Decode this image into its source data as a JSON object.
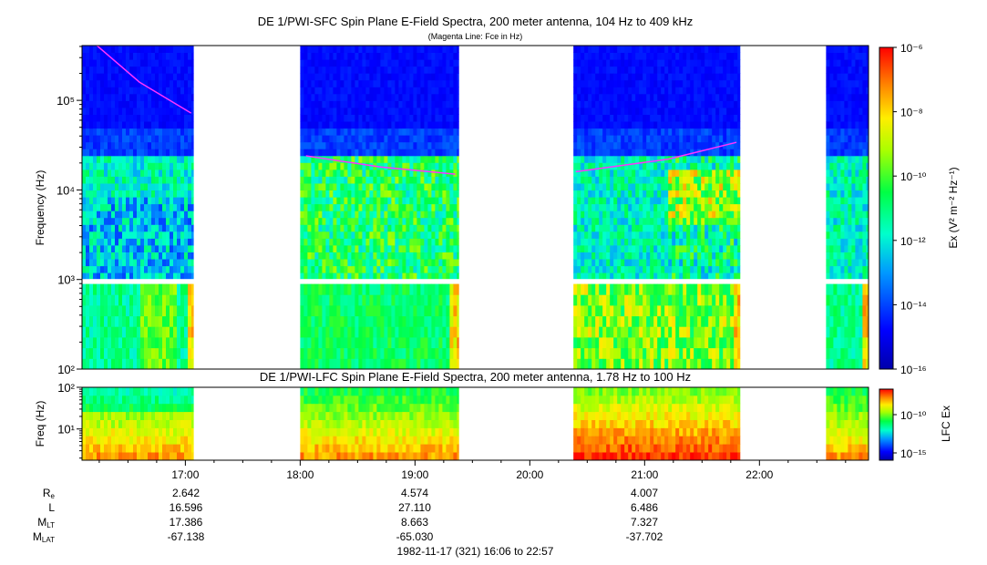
{
  "sfc": {
    "title": "DE 1/PWI-SFC  Spin Plane E-Field Spectra, 200 meter antenna, 104 Hz to 409 kHz",
    "subtitle": "(Magenta Line: Fce in Hz)",
    "ylabel": "Frequency (Hz)",
    "colorbar_label": "Ex (V² m⁻² Hz⁻¹)",
    "colorbar_ticks": [
      "10⁻⁶",
      "10⁻⁸",
      "10⁻¹⁰",
      "10⁻¹²",
      "10⁻¹⁴",
      "10⁻¹⁶"
    ],
    "yticks": [
      "10⁵",
      "10⁴",
      "10³",
      "10²"
    ]
  },
  "lfc": {
    "title": "DE 1/PWI-LFC  Spin Plane E-Field Spectra, 200 meter antenna, 1.78 Hz to 100 Hz",
    "ylabel": "Freq (Hz)",
    "colorbar_label": "LFC Ex",
    "colorbar_ticks": [
      "10⁻¹⁰",
      "10⁻¹⁵"
    ],
    "yticks": [
      "10²",
      "10¹"
    ]
  },
  "time_axis": {
    "ticks": [
      "17:00",
      "18:00",
      "19:00",
      "20:00",
      "21:00",
      "22:00"
    ]
  },
  "ephemeris": {
    "labels": {
      "re": "R",
      "re_sub": "e",
      "l": "L",
      "mlt": "M",
      "mlt_sub": "LT",
      "mlat": "M",
      "mlat_sub": "LAT"
    },
    "columns": [
      {
        "time": "17:00",
        "re": "2.642",
        "l": "16.596",
        "mlt": "17.386",
        "mlat": "-67.138"
      },
      {
        "time": "19:00",
        "re": "4.574",
        "l": "27.110",
        "mlt": "8.663",
        "mlat": "-65.030"
      },
      {
        "time": "21:00",
        "re": "4.007",
        "l": "6.486",
        "mlt": "7.327",
        "mlat": "-37.702"
      }
    ]
  },
  "footer": "1982-11-17 (321) 16:06 to 22:57",
  "colors": {
    "fce_line": "#ff33ff",
    "background": "#ffffff"
  },
  "chart_data": {
    "type": "heatmap",
    "title": "DE 1/PWI-SFC  Spin Plane E-Field Spectra, 200 meter antenna, 104 Hz to 409 kHz",
    "x_range_hours": [
      16.1,
      22.95
    ],
    "x_tick_hours": [
      17,
      18,
      19,
      20,
      21,
      22
    ],
    "sfc_ylim_hz": [
      100,
      409000
    ],
    "lfc_ylim_hz": [
      1.78,
      100
    ],
    "sfc_clim_exp": [
      -16,
      -6
    ],
    "lfc_clim_exp": [
      -16,
      -7
    ],
    "data_intervals_hours": [
      [
        16.1,
        17.07
      ],
      [
        18.0,
        19.38
      ],
      [
        20.38,
        21.83
      ],
      [
        22.58,
        22.95
      ]
    ],
    "fce_curve": [
      {
        "t": 16.23,
        "hz": 409000
      },
      {
        "t": 16.6,
        "hz": 160000
      },
      {
        "t": 17.05,
        "hz": 72000
      },
      {
        "t": 18.05,
        "hz": 24000
      },
      {
        "t": 18.7,
        "hz": 18000
      },
      {
        "t": 19.35,
        "hz": 15000
      },
      {
        "t": 20.4,
        "hz": 16000
      },
      {
        "t": 21.2,
        "hz": 22000
      },
      {
        "t": 21.8,
        "hz": 34000
      },
      {
        "t": 22.6,
        "hz": 400000
      }
    ]
  }
}
